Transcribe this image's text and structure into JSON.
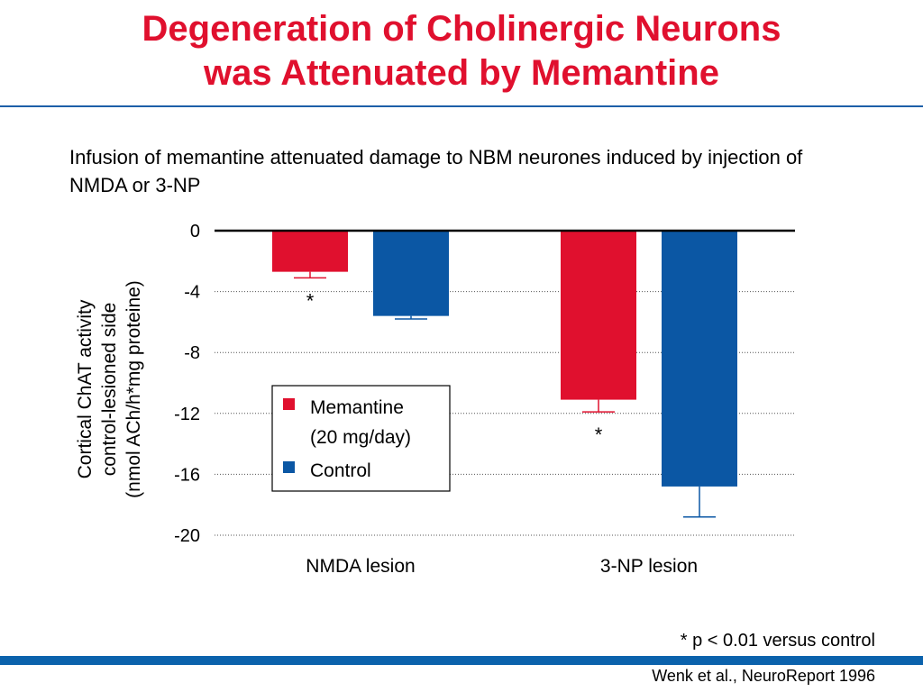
{
  "title": {
    "line1": "Degeneration of Cholinergic Neurons",
    "line2": "was Attenuated by Memantine"
  },
  "subtitle": "Infusion of memantine attenuated damage to NBM neurones induced by injection of NMDA or 3-NP",
  "footnote": "* p < 0.01 versus control",
  "citation": "Wenk et al., NeuroReport 1996",
  "colors": {
    "title": "#e0102e",
    "memantine": "#e0102e",
    "control": "#0b57a4",
    "accent_bar": "#0b62ac"
  },
  "chart_data": {
    "type": "bar",
    "categories": [
      "NMDA lesion",
      "3-NP lesion"
    ],
    "series": [
      {
        "name": "Memantine\n(20 mg/day)",
        "values": [
          -2.7,
          -11.1
        ],
        "error": [
          0.4,
          0.8
        ],
        "color": "#e0102e"
      },
      {
        "name": "Control",
        "values": [
          -5.6,
          -16.8
        ],
        "error": [
          0.2,
          2.0
        ],
        "color": "#0b57a4"
      }
    ],
    "ylabel": [
      "Cortical ChAT activity",
      "control-lesioned side",
      "(nmol ACh/h*mg proteine)"
    ],
    "ylim": [
      -20,
      0
    ],
    "yticks": [
      0,
      -4,
      -8,
      -12,
      -16,
      -20
    ],
    "grid": true,
    "legend_position": "center",
    "annotations": [
      {
        "category": "NMDA lesion",
        "series": "Memantine\n(20 mg/day)",
        "text": "*"
      },
      {
        "category": "3-NP lesion",
        "series": "Memantine\n(20 mg/day)",
        "text": "*"
      }
    ]
  }
}
